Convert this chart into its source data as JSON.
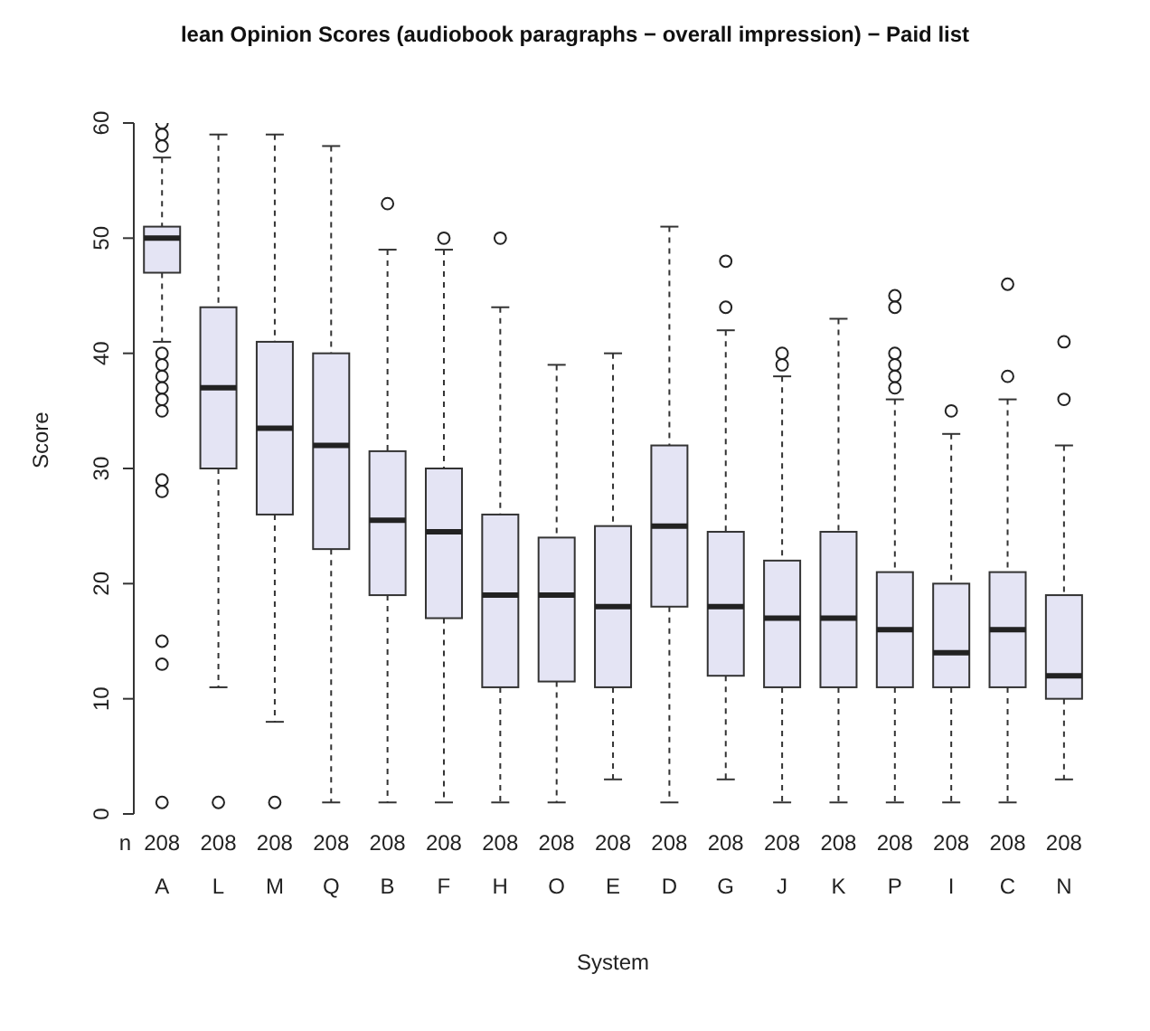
{
  "chart_data": {
    "type": "box",
    "title": "lean Opinion Scores (audiobook paragraphs − overall impression) − Paid list",
    "xlabel": "System",
    "ylabel": "Score",
    "categories": [
      "A",
      "L",
      "M",
      "Q",
      "B",
      "F",
      "H",
      "O",
      "E",
      "D",
      "G",
      "J",
      "K",
      "P",
      "I",
      "C",
      "N"
    ],
    "ylim": [
      0,
      60
    ],
    "yticks": [
      0,
      10,
      20,
      30,
      40,
      50,
      60
    ],
    "grid": false,
    "legend": false,
    "series": [
      {
        "color": "#e4e4f4",
        "boxes": [
          {
            "low": 41,
            "q1": 47,
            "median": 50,
            "q3": 51,
            "high": 57,
            "outliers": [
              58,
              59,
              60,
              40,
              39,
              38,
              37,
              36,
              35,
              29,
              28,
              15,
              13,
              1
            ]
          },
          {
            "low": 11,
            "q1": 30,
            "median": 37,
            "q3": 44,
            "high": 59,
            "outliers": [
              1
            ]
          },
          {
            "low": 8,
            "q1": 26,
            "median": 33.5,
            "q3": 41,
            "high": 59,
            "outliers": [
              1
            ]
          },
          {
            "low": 1,
            "q1": 23,
            "median": 32,
            "q3": 40,
            "high": 58
          },
          {
            "low": 1,
            "q1": 19,
            "median": 25.5,
            "q3": 31.5,
            "high": 49,
            "outliers": [
              53
            ]
          },
          {
            "low": 1,
            "q1": 17,
            "median": 24.5,
            "q3": 30,
            "high": 49,
            "outliers": [
              50
            ]
          },
          {
            "low": 1,
            "q1": 11,
            "median": 19,
            "q3": 26,
            "high": 44,
            "outliers": [
              50
            ]
          },
          {
            "low": 1,
            "q1": 11.5,
            "median": 19,
            "q3": 24,
            "high": 39
          },
          {
            "low": 3,
            "q1": 11,
            "median": 18,
            "q3": 25,
            "high": 40
          },
          {
            "low": 1,
            "q1": 18,
            "median": 25,
            "q3": 32,
            "high": 51
          },
          {
            "low": 3,
            "q1": 12,
            "median": 18,
            "q3": 24.5,
            "high": 42,
            "outliers": [
              44,
              48
            ]
          },
          {
            "low": 1,
            "q1": 11,
            "median": 17,
            "q3": 22,
            "high": 38,
            "outliers": [
              39,
              40
            ]
          },
          {
            "low": 1,
            "q1": 11,
            "median": 17,
            "q3": 24.5,
            "high": 43
          },
          {
            "low": 1,
            "q1": 11,
            "median": 16,
            "q3": 21,
            "high": 36,
            "outliers": [
              37,
              38,
              39,
              40,
              44,
              45
            ]
          },
          {
            "low": 1,
            "q1": 11,
            "median": 14,
            "q3": 20,
            "high": 33,
            "outliers": [
              35
            ]
          },
          {
            "low": 1,
            "q1": 11,
            "median": 16,
            "q3": 21,
            "high": 36,
            "outliers": [
              38,
              46
            ]
          },
          {
            "low": 3,
            "q1": 10,
            "median": 12,
            "q3": 19,
            "high": 32,
            "outliers": [
              36,
              41
            ]
          }
        ]
      }
    ],
    "annotations": [
      "n",
      "208",
      "208",
      "208",
      "208",
      "208",
      "208",
      "208",
      "208",
      "208",
      "208",
      "208",
      "208",
      "208",
      "208",
      "208",
      "208",
      "208"
    ]
  }
}
